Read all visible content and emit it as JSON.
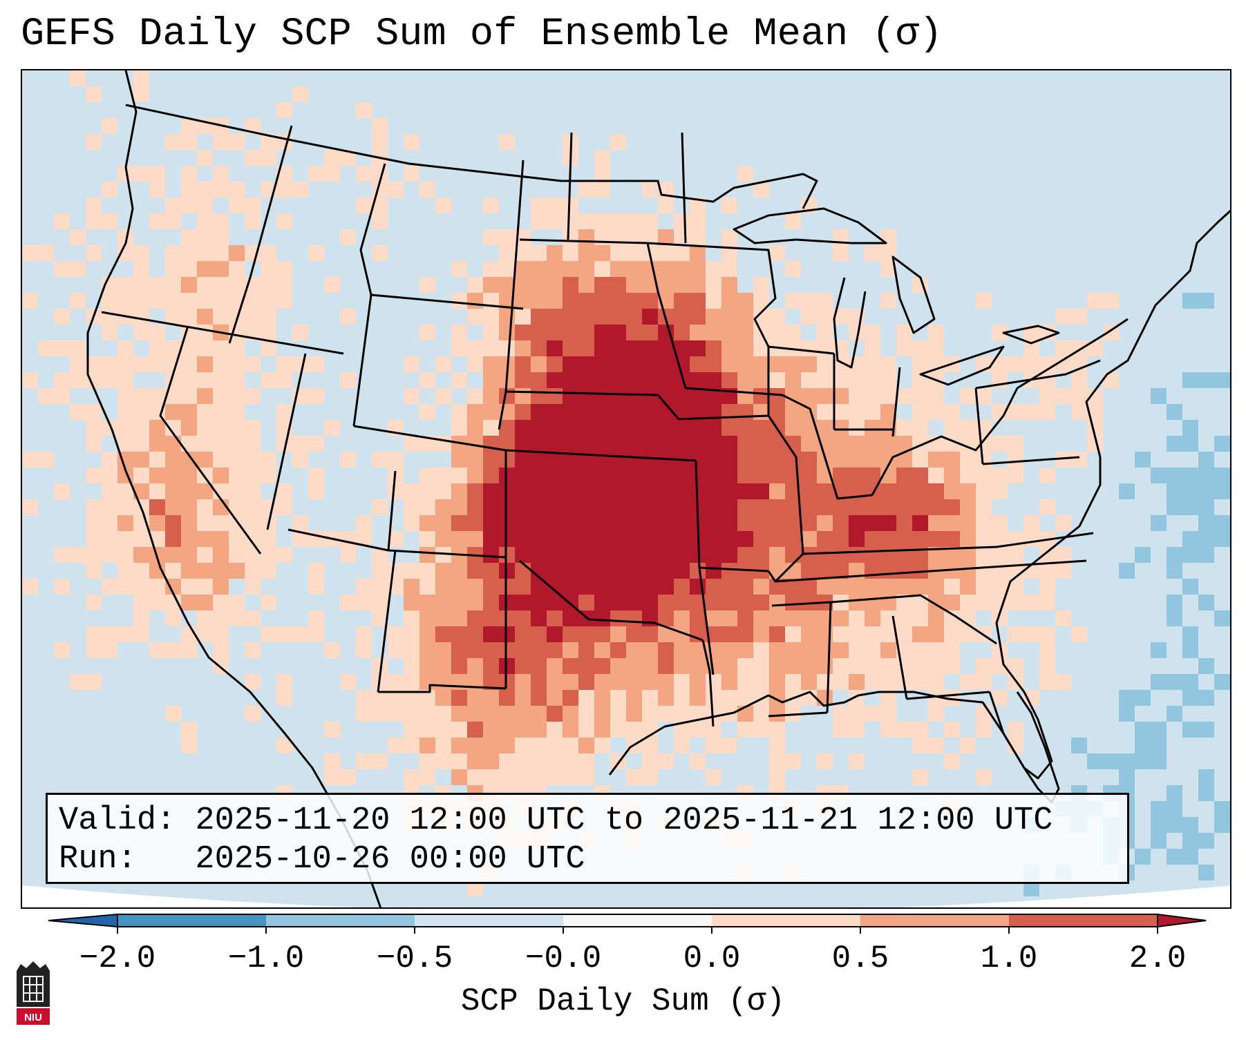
{
  "title": "GEFS Daily SCP Sum of Ensemble Mean (σ)",
  "info": {
    "valid_text": "Valid: 2025-11-20 12:00 UTC to 2025-11-21 12:00 UTC",
    "run_text": "Run:   2025-10-26 00:00 UTC"
  },
  "colorbar": {
    "label": "SCP Daily Sum (σ)",
    "ticks": [
      "−2.0",
      "−1.0",
      "−0.5",
      "−0.0",
      "0.0",
      "0.5",
      "1.0",
      "2.0"
    ],
    "colors": [
      "#4393c3",
      "#92c5de",
      "#d1e5f0",
      "#f7f7f7",
      "#fddbc7",
      "#f4a582",
      "#d6604d"
    ],
    "under_color": "#2166ac",
    "over_color": "#b2182b"
  },
  "map": {
    "background_color": "#cfe3ef",
    "dark_color": "#b2182b",
    "mid_color": "#d6604d",
    "light_color": "#f4a582",
    "pale_color": "#fddbc7",
    "blue_color": "#92c5de"
  },
  "logo": {
    "text": "NIU"
  }
}
